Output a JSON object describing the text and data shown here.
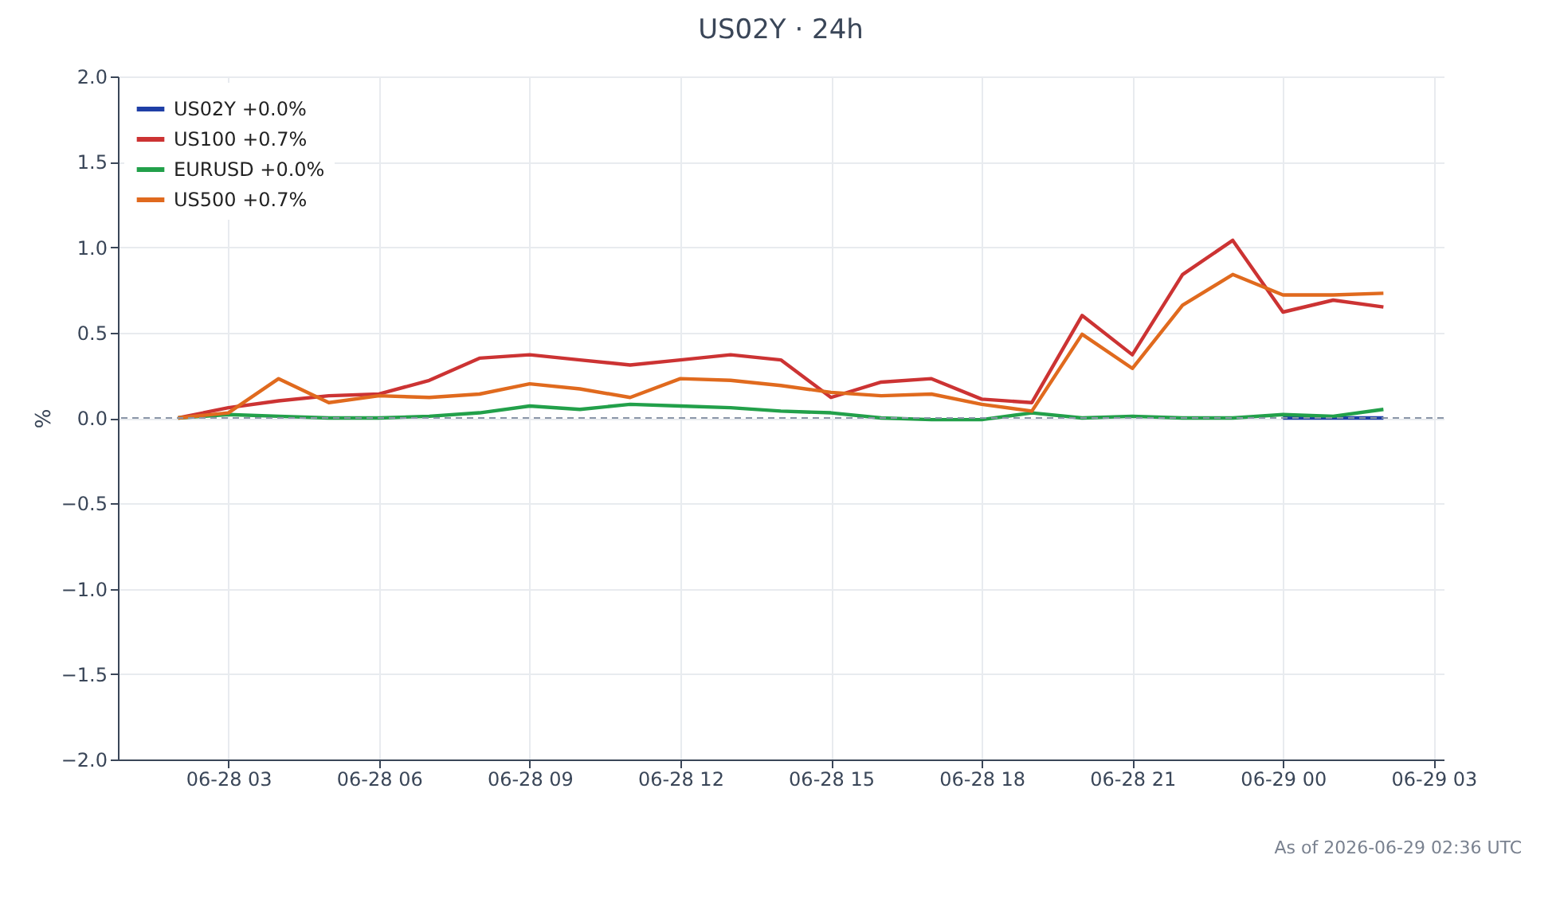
{
  "chart_data": {
    "type": "line",
    "title": "US02Y · 24h",
    "ylabel": "%",
    "x": [
      "2026-06-28T02:00",
      "2026-06-28T03:00",
      "2026-06-28T04:00",
      "2026-06-28T05:00",
      "2026-06-28T06:00",
      "2026-06-28T07:00",
      "2026-06-28T08:00",
      "2026-06-28T09:00",
      "2026-06-28T10:00",
      "2026-06-28T11:00",
      "2026-06-28T12:00",
      "2026-06-28T13:00",
      "2026-06-28T14:00",
      "2026-06-28T15:00",
      "2026-06-28T16:00",
      "2026-06-28T17:00",
      "2026-06-28T18:00",
      "2026-06-28T19:00",
      "2026-06-28T20:00",
      "2026-06-28T21:00",
      "2026-06-28T22:00",
      "2026-06-28T23:00",
      "2026-06-29T00:00",
      "2026-06-29T01:00",
      "2026-06-29T02:00"
    ],
    "series": [
      {
        "name": "US02Y +0.0%",
        "color": "#1f3fa6",
        "values": [
          null,
          null,
          null,
          null,
          null,
          null,
          null,
          null,
          null,
          null,
          null,
          null,
          null,
          null,
          null,
          null,
          null,
          null,
          null,
          null,
          null,
          null,
          0,
          0,
          0
        ]
      },
      {
        "name": "US100 +0.7%",
        "color": "#cc3333",
        "values": [
          0,
          0.06,
          0.1,
          0.13,
          0.14,
          0.22,
          0.35,
          0.37,
          0.34,
          0.31,
          0.34,
          0.37,
          0.34,
          0.12,
          0.21,
          0.23,
          0.11,
          0.09,
          0.6,
          0.37,
          0.84,
          1.04,
          0.62,
          0.69,
          0.65
        ]
      },
      {
        "name": "EURUSD +0.0%",
        "color": "#22a04a",
        "values": [
          0,
          0.02,
          0.01,
          0,
          0,
          0.01,
          0.03,
          0.07,
          0.05,
          0.08,
          0.07,
          0.06,
          0.04,
          0.03,
          0,
          -0.01,
          -0.01,
          0.03,
          0,
          0.01,
          0,
          0,
          0.02,
          0.01,
          0.05
        ]
      },
      {
        "name": "US500 +0.7%",
        "color": "#e06a1e",
        "values": [
          0,
          0.03,
          0.23,
          0.09,
          0.13,
          0.12,
          0.14,
          0.2,
          0.17,
          0.12,
          0.23,
          0.22,
          0.19,
          0.15,
          0.13,
          0.14,
          0.08,
          0.04,
          0.49,
          0.29,
          0.66,
          0.84,
          0.72,
          0.72,
          0.73
        ]
      }
    ],
    "xlim": [
      "2026-06-28T00:48",
      "2026-06-29T03:12"
    ],
    "xticks": [
      {
        "value": "2026-06-28T03:00",
        "label": "06-28 03"
      },
      {
        "value": "2026-06-28T06:00",
        "label": "06-28 06"
      },
      {
        "value": "2026-06-28T09:00",
        "label": "06-28 09"
      },
      {
        "value": "2026-06-28T12:00",
        "label": "06-28 12"
      },
      {
        "value": "2026-06-28T15:00",
        "label": "06-28 15"
      },
      {
        "value": "2026-06-28T18:00",
        "label": "06-28 18"
      },
      {
        "value": "2026-06-28T21:00",
        "label": "06-28 21"
      },
      {
        "value": "2026-06-29T00:00",
        "label": "06-29 00"
      },
      {
        "value": "2026-06-29T03:00",
        "label": "06-29 03"
      }
    ],
    "ylim": [
      -2,
      2
    ],
    "yticks": [
      {
        "value": -2,
        "label": "−2.0"
      },
      {
        "value": -1.5,
        "label": "−1.5"
      },
      {
        "value": -1,
        "label": "−1.0"
      },
      {
        "value": -0.5,
        "label": "−0.5"
      },
      {
        "value": 0,
        "label": "0.0"
      },
      {
        "value": 0.5,
        "label": "0.5"
      },
      {
        "value": 1,
        "label": "1.0"
      },
      {
        "value": 1.5,
        "label": "1.5"
      },
      {
        "value": 2,
        "label": "2.0"
      }
    ],
    "ref_lines": [
      {
        "axis": "y",
        "value": 0,
        "color": "#8a96a8",
        "line_style": "dashed"
      }
    ],
    "grid": true,
    "legend": "top left",
    "line_style": "solid",
    "annotations": [
      "As of 2026-06-29 02:36 UTC"
    ]
  }
}
